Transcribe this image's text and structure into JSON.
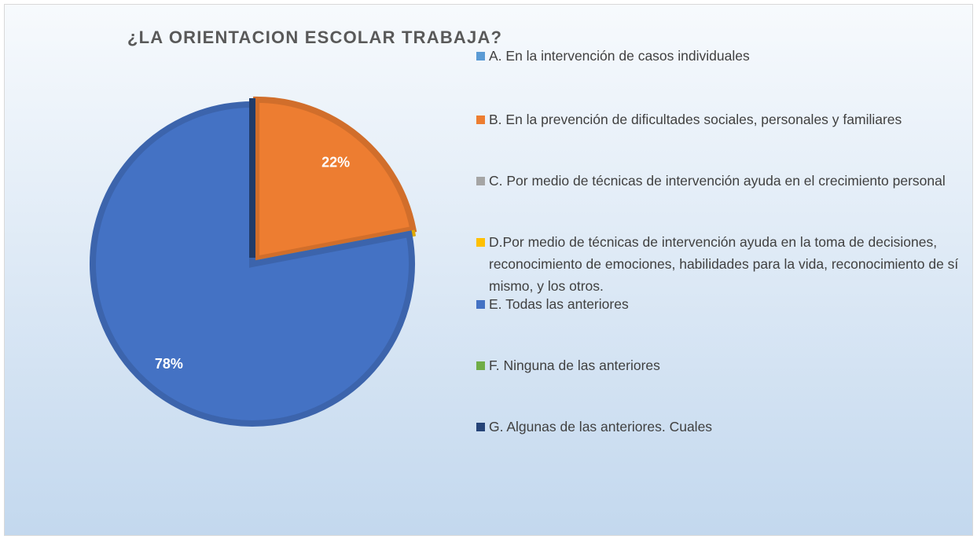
{
  "chart_data": {
    "type": "pie",
    "title": "¿LA ORIENTACION ESCOLAR TRABAJA?",
    "categories": [
      "A. En la intervención de casos individuales",
      "B.  En la prevención de  dificultades sociales, personales y familiares",
      "C. Por medio de técnicas de intervención ayuda en el crecimiento personal",
      "D.Por medio de técnicas de intervención ayuda en la toma de decisiones, reconocimiento de   emociones, habilidades para la vida, reconocimiento de sí mismo, y los otros.",
      "E. Todas las anteriores",
      "F. Ninguna de las anteriores",
      "G. Algunas de las anteriores. Cuales"
    ],
    "values": [
      0,
      22,
      0,
      0,
      78,
      0,
      0
    ],
    "value_labels": [
      null,
      "22%",
      null,
      null,
      "78%",
      null,
      null
    ],
    "colors": [
      "#5b9bd5",
      "#ed7d31",
      "#a5a5a5",
      "#ffc000",
      "#4472c4",
      "#70ad47",
      "#264478"
    ],
    "legend": "right"
  }
}
